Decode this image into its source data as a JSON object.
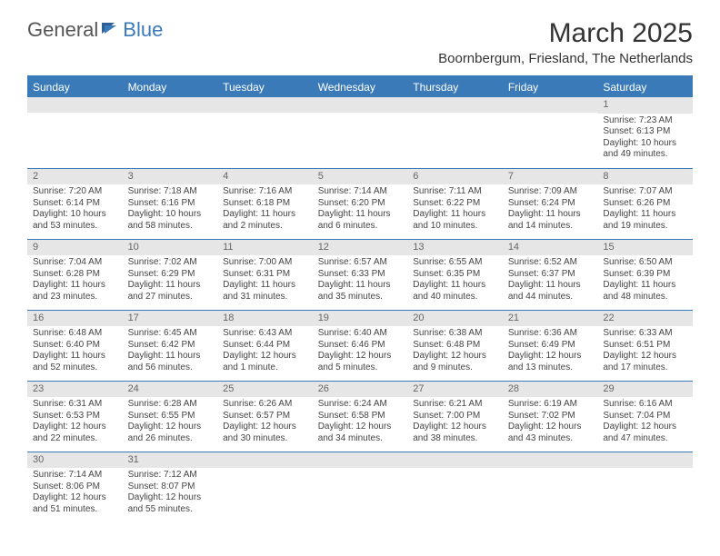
{
  "logo": {
    "word1": "General",
    "word2": "Blue"
  },
  "title": "March 2025",
  "location": "Boornbergum, Friesland, The Netherlands",
  "days": [
    "Sunday",
    "Monday",
    "Tuesday",
    "Wednesday",
    "Thursday",
    "Friday",
    "Saturday"
  ],
  "colors": {
    "accent": "#3a7ab8",
    "strip": "#e6e6e6"
  },
  "weeks": [
    [
      null,
      null,
      null,
      null,
      null,
      null,
      {
        "n": "1",
        "sr": "Sunrise: 7:23 AM",
        "ss": "Sunset: 6:13 PM",
        "dl": "Daylight: 10 hours and 49 minutes."
      }
    ],
    [
      {
        "n": "2",
        "sr": "Sunrise: 7:20 AM",
        "ss": "Sunset: 6:14 PM",
        "dl": "Daylight: 10 hours and 53 minutes."
      },
      {
        "n": "3",
        "sr": "Sunrise: 7:18 AM",
        "ss": "Sunset: 6:16 PM",
        "dl": "Daylight: 10 hours and 58 minutes."
      },
      {
        "n": "4",
        "sr": "Sunrise: 7:16 AM",
        "ss": "Sunset: 6:18 PM",
        "dl": "Daylight: 11 hours and 2 minutes."
      },
      {
        "n": "5",
        "sr": "Sunrise: 7:14 AM",
        "ss": "Sunset: 6:20 PM",
        "dl": "Daylight: 11 hours and 6 minutes."
      },
      {
        "n": "6",
        "sr": "Sunrise: 7:11 AM",
        "ss": "Sunset: 6:22 PM",
        "dl": "Daylight: 11 hours and 10 minutes."
      },
      {
        "n": "7",
        "sr": "Sunrise: 7:09 AM",
        "ss": "Sunset: 6:24 PM",
        "dl": "Daylight: 11 hours and 14 minutes."
      },
      {
        "n": "8",
        "sr": "Sunrise: 7:07 AM",
        "ss": "Sunset: 6:26 PM",
        "dl": "Daylight: 11 hours and 19 minutes."
      }
    ],
    [
      {
        "n": "9",
        "sr": "Sunrise: 7:04 AM",
        "ss": "Sunset: 6:28 PM",
        "dl": "Daylight: 11 hours and 23 minutes."
      },
      {
        "n": "10",
        "sr": "Sunrise: 7:02 AM",
        "ss": "Sunset: 6:29 PM",
        "dl": "Daylight: 11 hours and 27 minutes."
      },
      {
        "n": "11",
        "sr": "Sunrise: 7:00 AM",
        "ss": "Sunset: 6:31 PM",
        "dl": "Daylight: 11 hours and 31 minutes."
      },
      {
        "n": "12",
        "sr": "Sunrise: 6:57 AM",
        "ss": "Sunset: 6:33 PM",
        "dl": "Daylight: 11 hours and 35 minutes."
      },
      {
        "n": "13",
        "sr": "Sunrise: 6:55 AM",
        "ss": "Sunset: 6:35 PM",
        "dl": "Daylight: 11 hours and 40 minutes."
      },
      {
        "n": "14",
        "sr": "Sunrise: 6:52 AM",
        "ss": "Sunset: 6:37 PM",
        "dl": "Daylight: 11 hours and 44 minutes."
      },
      {
        "n": "15",
        "sr": "Sunrise: 6:50 AM",
        "ss": "Sunset: 6:39 PM",
        "dl": "Daylight: 11 hours and 48 minutes."
      }
    ],
    [
      {
        "n": "16",
        "sr": "Sunrise: 6:48 AM",
        "ss": "Sunset: 6:40 PM",
        "dl": "Daylight: 11 hours and 52 minutes."
      },
      {
        "n": "17",
        "sr": "Sunrise: 6:45 AM",
        "ss": "Sunset: 6:42 PM",
        "dl": "Daylight: 11 hours and 56 minutes."
      },
      {
        "n": "18",
        "sr": "Sunrise: 6:43 AM",
        "ss": "Sunset: 6:44 PM",
        "dl": "Daylight: 12 hours and 1 minute."
      },
      {
        "n": "19",
        "sr": "Sunrise: 6:40 AM",
        "ss": "Sunset: 6:46 PM",
        "dl": "Daylight: 12 hours and 5 minutes."
      },
      {
        "n": "20",
        "sr": "Sunrise: 6:38 AM",
        "ss": "Sunset: 6:48 PM",
        "dl": "Daylight: 12 hours and 9 minutes."
      },
      {
        "n": "21",
        "sr": "Sunrise: 6:36 AM",
        "ss": "Sunset: 6:49 PM",
        "dl": "Daylight: 12 hours and 13 minutes."
      },
      {
        "n": "22",
        "sr": "Sunrise: 6:33 AM",
        "ss": "Sunset: 6:51 PM",
        "dl": "Daylight: 12 hours and 17 minutes."
      }
    ],
    [
      {
        "n": "23",
        "sr": "Sunrise: 6:31 AM",
        "ss": "Sunset: 6:53 PM",
        "dl": "Daylight: 12 hours and 22 minutes."
      },
      {
        "n": "24",
        "sr": "Sunrise: 6:28 AM",
        "ss": "Sunset: 6:55 PM",
        "dl": "Daylight: 12 hours and 26 minutes."
      },
      {
        "n": "25",
        "sr": "Sunrise: 6:26 AM",
        "ss": "Sunset: 6:57 PM",
        "dl": "Daylight: 12 hours and 30 minutes."
      },
      {
        "n": "26",
        "sr": "Sunrise: 6:24 AM",
        "ss": "Sunset: 6:58 PM",
        "dl": "Daylight: 12 hours and 34 minutes."
      },
      {
        "n": "27",
        "sr": "Sunrise: 6:21 AM",
        "ss": "Sunset: 7:00 PM",
        "dl": "Daylight: 12 hours and 38 minutes."
      },
      {
        "n": "28",
        "sr": "Sunrise: 6:19 AM",
        "ss": "Sunset: 7:02 PM",
        "dl": "Daylight: 12 hours and 43 minutes."
      },
      {
        "n": "29",
        "sr": "Sunrise: 6:16 AM",
        "ss": "Sunset: 7:04 PM",
        "dl": "Daylight: 12 hours and 47 minutes."
      }
    ],
    [
      {
        "n": "30",
        "sr": "Sunrise: 7:14 AM",
        "ss": "Sunset: 8:06 PM",
        "dl": "Daylight: 12 hours and 51 minutes."
      },
      {
        "n": "31",
        "sr": "Sunrise: 7:12 AM",
        "ss": "Sunset: 8:07 PM",
        "dl": "Daylight: 12 hours and 55 minutes."
      },
      null,
      null,
      null,
      null,
      null
    ]
  ]
}
